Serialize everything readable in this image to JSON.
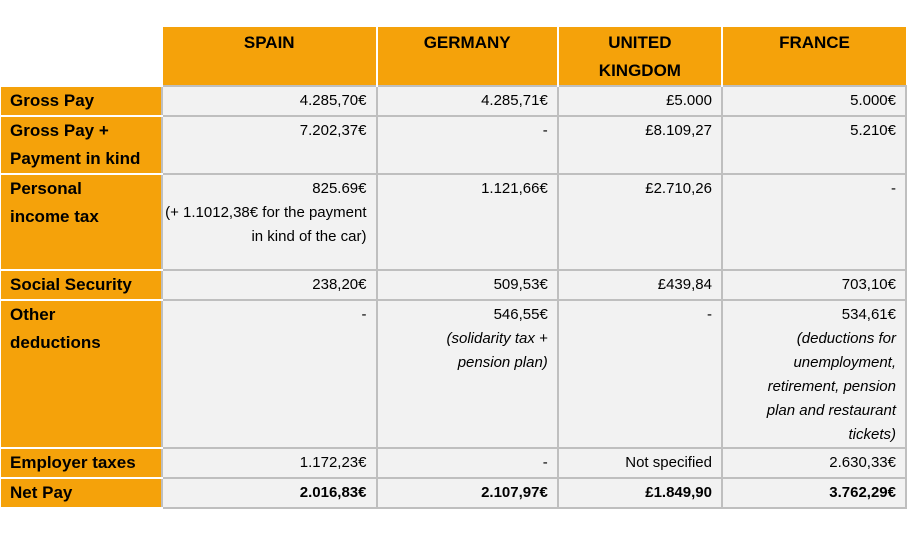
{
  "columns": [
    "SPAIN",
    "GERMANY",
    "UNITED KINGDOM",
    "FRANCE"
  ],
  "rows": [
    {
      "label": "Gross Pay",
      "cells": [
        {
          "value": "4.285,70€"
        },
        {
          "value": "4.285,71€"
        },
        {
          "value": "£5.000"
        },
        {
          "value": "5.000€"
        }
      ]
    },
    {
      "label": "Gross Pay + Payment in kind",
      "cells": [
        {
          "value": "7.202,37€"
        },
        {
          "value": "-"
        },
        {
          "value": "£8.109,27"
        },
        {
          "value": "5.210€"
        }
      ]
    },
    {
      "label": "Personal income tax",
      "cells": [
        {
          "value": "825.69€",
          "note": "(+ 1.1012,38€ for the payment in kind of the car)"
        },
        {
          "value": "1.121,66€"
        },
        {
          "value": "£2.710,26"
        },
        {
          "value": "-"
        }
      ]
    },
    {
      "label": "Social Security",
      "cells": [
        {
          "value": "238,20€"
        },
        {
          "value": "509,53€"
        },
        {
          "value": "£439,84"
        },
        {
          "value": "703,10€"
        }
      ]
    },
    {
      "label": "Other deductions",
      "cells": [
        {
          "value": "-"
        },
        {
          "value": "546,55€",
          "note": "(solidarity tax + pension plan)"
        },
        {
          "value": "-"
        },
        {
          "value": "534,61€",
          "note": "(deductions for unemployment, retirement, pension plan and restaurant tickets)"
        }
      ]
    },
    {
      "label": "Employer taxes",
      "cells": [
        {
          "value": "1.172,23€"
        },
        {
          "value": "-"
        },
        {
          "value": "Not specified"
        },
        {
          "value": "2.630,33€"
        }
      ]
    },
    {
      "label": "Net Pay",
      "cells": [
        {
          "value": "2.016,83€"
        },
        {
          "value": "2.107,97€"
        },
        {
          "value": "£1.849,90"
        },
        {
          "value": "3.762,29€"
        }
      ]
    }
  ],
  "colors": {
    "header_fill": "#f5a20a",
    "cell_fill": "#f2f2f2",
    "grid": "#bfbfbf"
  }
}
